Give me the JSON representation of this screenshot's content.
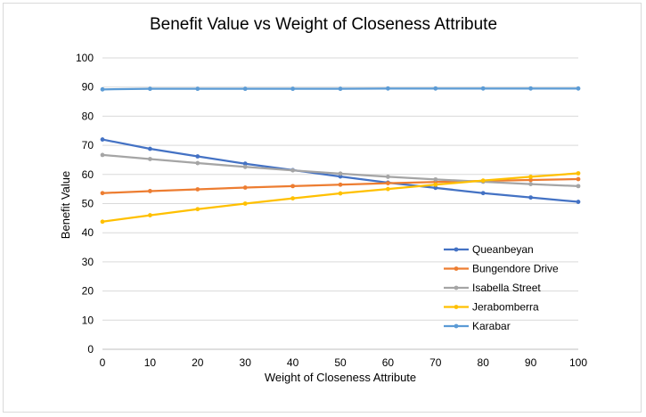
{
  "chart_data": {
    "type": "line",
    "title": "Benefit Value vs Weight of Closeness Attribute",
    "xlabel": "Weight of Closeness Attribute",
    "ylabel": "Benefit Value",
    "x": [
      0,
      10,
      20,
      30,
      40,
      50,
      60,
      70,
      80,
      90,
      100
    ],
    "xlim": [
      0,
      100
    ],
    "ylim": [
      0,
      100
    ],
    "xticks": [
      0,
      10,
      20,
      30,
      40,
      50,
      60,
      70,
      80,
      90,
      100
    ],
    "yticks": [
      0,
      10,
      20,
      30,
      40,
      50,
      60,
      70,
      80,
      90,
      100
    ],
    "grid": true,
    "legend_position": "bottom-right",
    "series": [
      {
        "name": "Queanbeyan",
        "color": "#4472c4",
        "values": [
          72,
          68.8,
          66.2,
          63.7,
          61.5,
          59.3,
          57.2,
          55.4,
          53.6,
          52.1,
          50.6
        ]
      },
      {
        "name": "Bungendore Drive",
        "color": "#ed7d31",
        "values": [
          53.6,
          54.3,
          54.9,
          55.5,
          56.0,
          56.5,
          57.0,
          57.4,
          57.8,
          58.1,
          58.4
        ]
      },
      {
        "name": "Isabella Street",
        "color": "#a5a5a5",
        "values": [
          66.7,
          65.3,
          63.9,
          62.6,
          61.4,
          60.3,
          59.2,
          58.3,
          57.5,
          56.7,
          56.0
        ]
      },
      {
        "name": "Jerabomberra",
        "color": "#ffc000",
        "values": [
          43.8,
          46.0,
          48.1,
          50.0,
          51.8,
          53.5,
          55.0,
          56.5,
          57.9,
          59.2,
          60.4
        ]
      },
      {
        "name": "Karabar",
        "color": "#5b9bd5",
        "values": [
          89.2,
          89.4,
          89.4,
          89.4,
          89.4,
          89.4,
          89.5,
          89.5,
          89.5,
          89.5,
          89.5
        ]
      }
    ]
  }
}
